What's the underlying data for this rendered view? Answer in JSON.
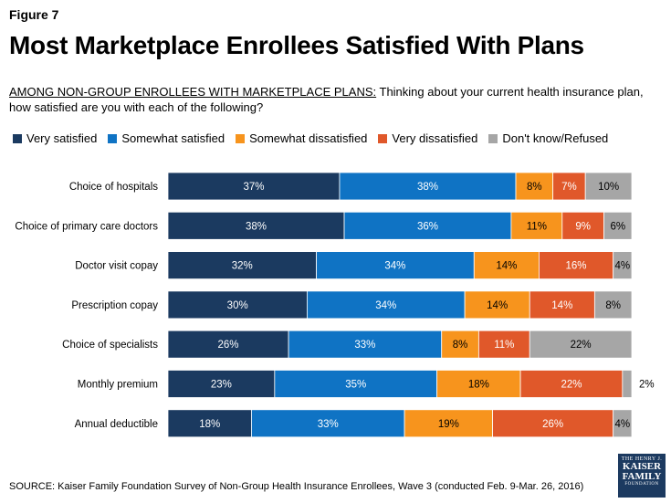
{
  "header": {
    "figure_label": "Figure 7",
    "title": "Most Marketplace Enrollees Satisfied With Plans",
    "subtitle_lead": "AMONG NON-GROUP ENROLLEES WITH MARKETPLACE PLANS:",
    "subtitle_rest": " Thinking about your current health insurance plan, how satisfied are you with each of the following?"
  },
  "footer": {
    "source": "SOURCE: Kaiser Family Foundation Survey of Non-Group Health Insurance Enrollees, Wave 3 (conducted Feb. 9-Mar. 26, 2016)",
    "logo_line1": "THE HENRY J.",
    "logo_line2": "KAISER",
    "logo_line3": "FAMILY",
    "logo_line4": "FOUNDATION"
  },
  "chart_data": {
    "type": "bar",
    "orientation": "horizontal-stacked",
    "xlim": [
      0,
      100
    ],
    "categories": [
      "Choice of hospitals",
      "Choice of primary care doctors",
      "Doctor visit copay",
      "Prescription copay",
      "Choice of specialists",
      "Monthly premium",
      "Annual deductible"
    ],
    "series": [
      {
        "name": "Very satisfied",
        "color": "#1b3a60",
        "label_color": "#ffffff",
        "values": [
          37,
          38,
          32,
          30,
          26,
          23,
          18
        ]
      },
      {
        "name": "Somewhat satisfied",
        "color": "#0f73c4",
        "label_color": "#ffffff",
        "values": [
          38,
          36,
          34,
          34,
          33,
          35,
          33
        ]
      },
      {
        "name": "Somewhat dissatisfied",
        "color": "#f7941d",
        "label_color": "#000000",
        "values": [
          8,
          11,
          14,
          14,
          8,
          18,
          19
        ]
      },
      {
        "name": "Very dissatisfied",
        "color": "#e0582a",
        "label_color": "#ffffff",
        "values": [
          7,
          9,
          16,
          14,
          11,
          22,
          26
        ]
      },
      {
        "name": "Don't know/Refused",
        "color": "#a6a6a6",
        "label_color": "#000000",
        "values": [
          10,
          6,
          4,
          8,
          22,
          2,
          4
        ]
      }
    ],
    "legend_position": "top",
    "value_suffix": "%"
  }
}
